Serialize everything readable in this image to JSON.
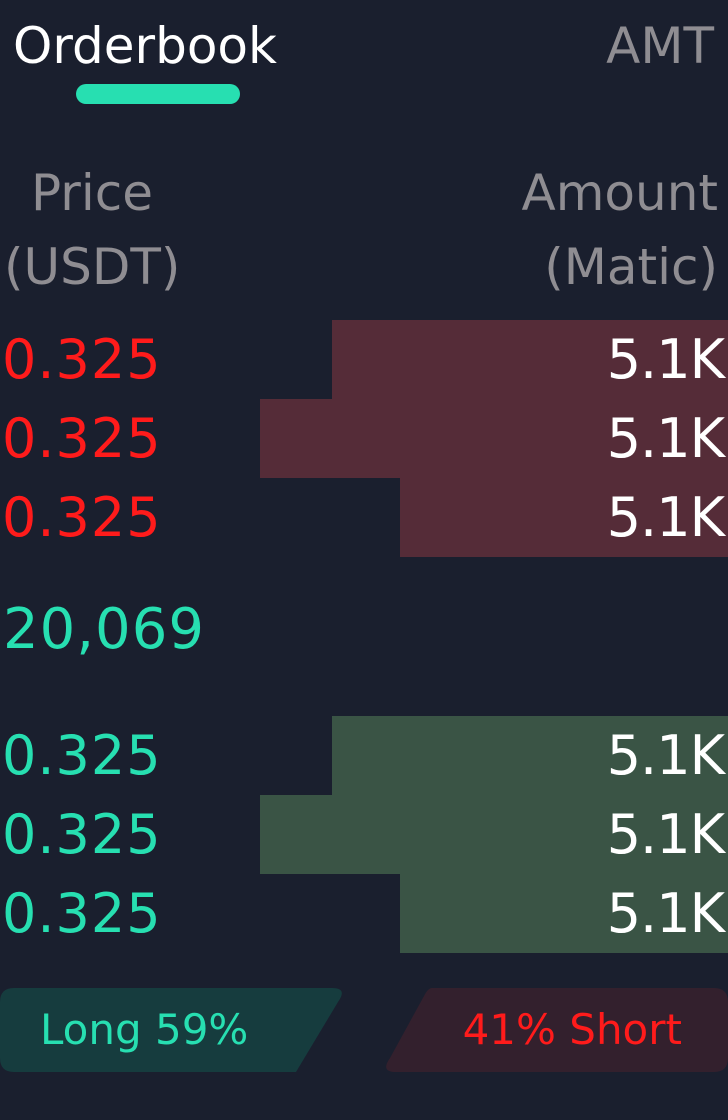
{
  "tabs": {
    "orderbook": "Orderbook",
    "amt": "AMT",
    "active": "Orderbook"
  },
  "columns": {
    "price_line1": "Price",
    "price_line2": "(USDT)",
    "amount_line1": "Amount",
    "amount_line2": "(Matic)"
  },
  "asks": [
    {
      "price": "0.325",
      "amount": "5.1K",
      "depth": 0.544
    },
    {
      "price": "0.325",
      "amount": "5.1K",
      "depth": 0.643
    },
    {
      "price": "0.325",
      "amount": "5.1K",
      "depth": 0.451
    }
  ],
  "mid_price": "20,069",
  "bids": [
    {
      "price": "0.325",
      "amount": "5.1K",
      "depth": 0.544
    },
    {
      "price": "0.325",
      "amount": "5.1K",
      "depth": 0.643
    },
    {
      "price": "0.325",
      "amount": "5.1K",
      "depth": 0.451
    }
  ],
  "ratio": {
    "long_label": "Long 59%",
    "short_label": "41% Short",
    "long_percent": 59,
    "short_percent": 41
  },
  "colors": {
    "background": "#1a1f2e",
    "accent_green": "#27dfb1",
    "accent_red": "#ff1b1b",
    "ask_depth": "#552c38",
    "bid_depth": "#3a5445",
    "long_bg": "#163c3e",
    "short_bg": "#33202d",
    "muted_text": "#8f8d92"
  }
}
